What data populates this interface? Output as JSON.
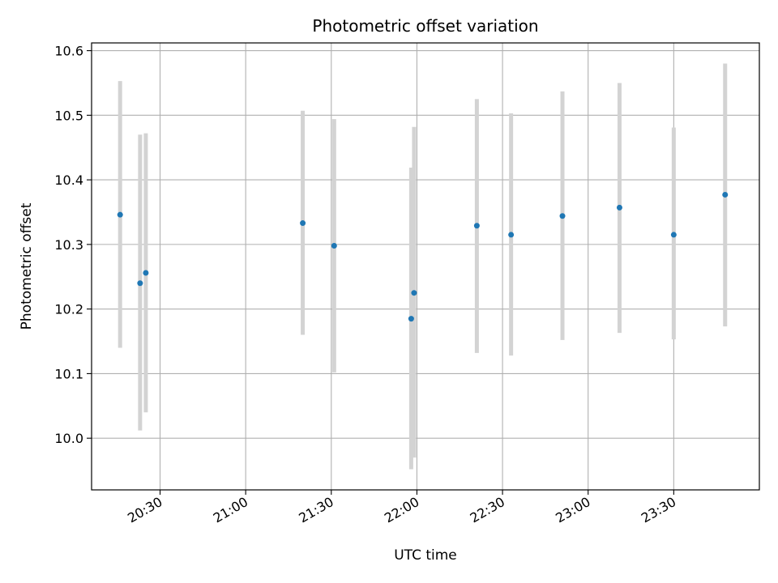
{
  "chart_data": {
    "type": "scatter",
    "title": "Photometric offset variation",
    "xlabel": "UTC time",
    "ylabel": "Photometric offset",
    "x_axis_kind": "time",
    "xlim": [
      "20:06",
      "24:00"
    ],
    "ylim": [
      9.92,
      10.612
    ],
    "grid": true,
    "x_ticks": [
      "20:30",
      "21:00",
      "21:30",
      "22:00",
      "22:30",
      "23:00",
      "23:30"
    ],
    "y_ticks": [
      10.0,
      10.1,
      10.2,
      10.3,
      10.4,
      10.5,
      10.6
    ],
    "y_tick_labels": [
      "10.0",
      "10.1",
      "10.2",
      "10.3",
      "10.4",
      "10.5",
      "10.6"
    ],
    "colors": {
      "point": "#1f77b4",
      "errorbar": "#d3d3d3",
      "grid": "#b0b0b0"
    },
    "points": [
      {
        "x": "20:16",
        "y": 10.346,
        "ylow": 10.14,
        "yhigh": 10.553
      },
      {
        "x": "20:23",
        "y": 10.24,
        "ylow": 10.012,
        "yhigh": 10.47
      },
      {
        "x": "20:25",
        "y": 10.256,
        "ylow": 10.04,
        "yhigh": 10.472
      },
      {
        "x": "21:20",
        "y": 10.333,
        "ylow": 10.16,
        "yhigh": 10.507
      },
      {
        "x": "21:31",
        "y": 10.298,
        "ylow": 10.102,
        "yhigh": 10.494
      },
      {
        "x": "21:58",
        "y": 10.185,
        "ylow": 9.952,
        "yhigh": 10.419
      },
      {
        "x": "21:59",
        "y": 10.225,
        "ylow": 9.97,
        "yhigh": 10.482
      },
      {
        "x": "22:21",
        "y": 10.329,
        "ylow": 10.132,
        "yhigh": 10.525
      },
      {
        "x": "22:33",
        "y": 10.315,
        "ylow": 10.128,
        "yhigh": 10.503
      },
      {
        "x": "22:51",
        "y": 10.344,
        "ylow": 10.152,
        "yhigh": 10.537
      },
      {
        "x": "23:11",
        "y": 10.357,
        "ylow": 10.163,
        "yhigh": 10.55
      },
      {
        "x": "23:30",
        "y": 10.315,
        "ylow": 10.153,
        "yhigh": 10.481
      },
      {
        "x": "23:48",
        "y": 10.377,
        "ylow": 10.173,
        "yhigh": 10.58
      }
    ]
  }
}
